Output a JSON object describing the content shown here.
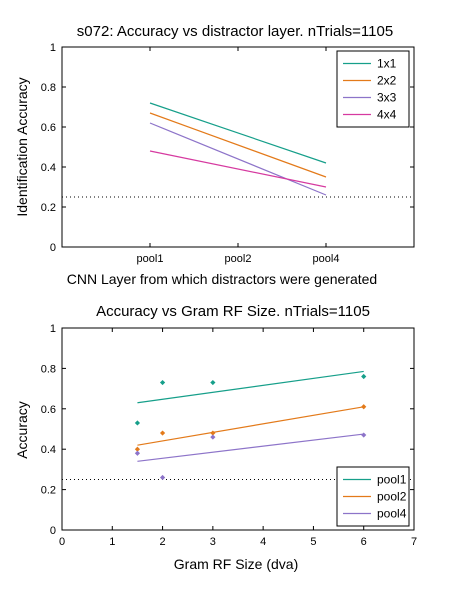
{
  "chart_data": [
    {
      "type": "line",
      "title": "s072: Accuracy vs distractor layer. nTrials=1105",
      "xlabel": "CNN Layer from which distractors were generated",
      "ylabel": "Identification Accuracy",
      "categories": [
        "pool1",
        "pool2",
        "pool4"
      ],
      "x_ticks": [
        1,
        2,
        3
      ],
      "xlim": [
        0,
        4
      ],
      "ylim": [
        0,
        1
      ],
      "y_ticks": [
        "0",
        "0.2",
        "0.4",
        "0.6",
        "0.8",
        "1"
      ],
      "chance_level": 0.25,
      "legend_position": "top-right",
      "series": [
        {
          "name": "1x1",
          "color": "#169f8a",
          "x": [
            1,
            3
          ],
          "y": [
            0.72,
            0.42
          ]
        },
        {
          "name": "2x2",
          "color": "#e37a1a",
          "x": [
            1,
            3
          ],
          "y": [
            0.67,
            0.35
          ]
        },
        {
          "name": "3x3",
          "color": "#8d74c9",
          "x": [
            1,
            3
          ],
          "y": [
            0.62,
            0.26
          ]
        },
        {
          "name": "4x4",
          "color": "#d63aa0",
          "x": [
            1,
            3
          ],
          "y": [
            0.48,
            0.3
          ]
        }
      ]
    },
    {
      "type": "scatter",
      "title": "Accuracy vs Gram RF Size. nTrials=1105",
      "xlabel": "Gram RF Size (dva)",
      "ylabel": "Accuracy",
      "xlim": [
        0,
        7
      ],
      "ylim": [
        0,
        1
      ],
      "x_ticks": [
        "0",
        "1",
        "2",
        "3",
        "4",
        "5",
        "6",
        "7"
      ],
      "y_ticks": [
        "0",
        "0.2",
        "0.4",
        "0.6",
        "0.8",
        "1"
      ],
      "chance_level": 0.25,
      "legend_position": "bottom-right",
      "series": [
        {
          "name": "pool1",
          "color": "#169f8a",
          "x": [
            1.5,
            2,
            3,
            6
          ],
          "y": [
            0.53,
            0.73,
            0.73,
            0.76
          ],
          "fit": [
            [
              1.5,
              0.63
            ],
            [
              6,
              0.785
            ]
          ]
        },
        {
          "name": "pool2",
          "color": "#e37a1a",
          "x": [
            1.5,
            2,
            3,
            6
          ],
          "y": [
            0.4,
            0.48,
            0.48,
            0.61
          ],
          "fit": [
            [
              1.5,
              0.42
            ],
            [
              6,
              0.61
            ]
          ]
        },
        {
          "name": "pool4",
          "color": "#8d74c9",
          "x": [
            1.5,
            2,
            3,
            6
          ],
          "y": [
            0.38,
            0.26,
            0.46,
            0.47
          ],
          "fit": [
            [
              1.5,
              0.34
            ],
            [
              6,
              0.475
            ]
          ]
        }
      ]
    }
  ]
}
